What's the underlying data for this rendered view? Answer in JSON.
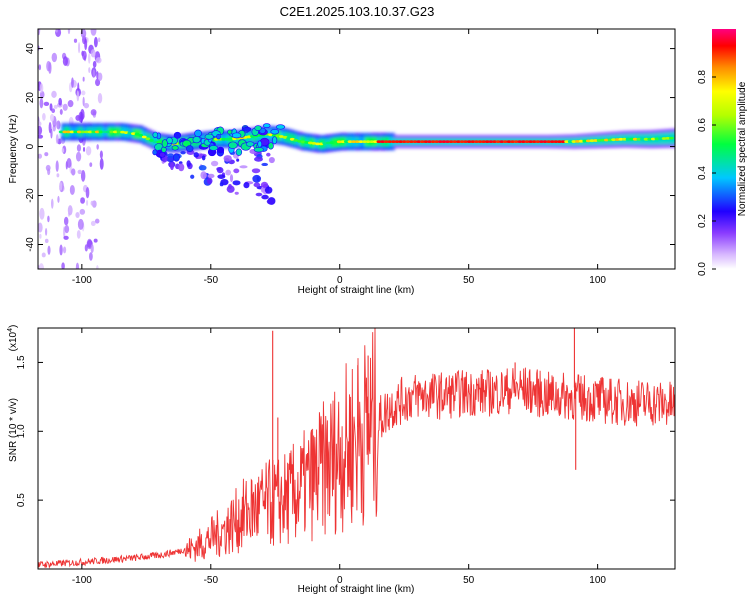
{
  "title": "C2E1.2025.103.10.37.G23",
  "chart_data": [
    {
      "type": "heatmap",
      "xlabel": "Height of straight line (km)",
      "ylabel": "Frequency (Hz)",
      "xlim": [
        -117,
        130
      ],
      "ylim": [
        -50,
        48
      ],
      "xticks": [
        -100,
        -50,
        0,
        50,
        100
      ],
      "yticks": [
        -40,
        -20,
        0,
        20,
        40
      ],
      "ridge": {
        "x": [
          -105,
          -95,
          -85,
          -78,
          -72,
          -65,
          -58,
          -50,
          -42,
          -35,
          -28,
          -22,
          -15,
          -8,
          0,
          10,
          20,
          40,
          60,
          80,
          90,
          100,
          110,
          120,
          130
        ],
        "freq": [
          6,
          6,
          6,
          5,
          2,
          1,
          2,
          3,
          3,
          4,
          5,
          4,
          2,
          1,
          2,
          2,
          2,
          2,
          2,
          2,
          2,
          2.5,
          3,
          3,
          3.5
        ]
      },
      "colorbar": {
        "label": "Normalized spectral amplitude",
        "range": [
          0,
          1
        ],
        "ticks": [
          "0.0",
          "0.2",
          "0.4",
          "0.6",
          "0.8"
        ],
        "tick_values": [
          0,
          0.2,
          0.4,
          0.6,
          0.8
        ]
      }
    },
    {
      "type": "line",
      "xlabel": "Height of straight line (km)",
      "ylabel": "SNR (10 * v/v)",
      "y_multiplier": "(x10",
      "y_exponent": "4",
      "y_exponent_close": ")",
      "xlim": [
        -117,
        130
      ],
      "ylim": [
        0,
        1.75
      ],
      "xticks": [
        -100,
        -50,
        0,
        50,
        100
      ],
      "yticks": [
        0.5,
        1.0,
        1.5
      ],
      "ytick_labels": [
        "0.5",
        "1.0",
        "1.5"
      ],
      "series": [
        {
          "color": "#ee3333",
          "envelope_x": [
            -117,
            -100,
            -80,
            -70,
            -62,
            -55,
            -45,
            -35,
            -28,
            -20,
            -15,
            -10,
            -5,
            0,
            5,
            10,
            15,
            20,
            25,
            30,
            40,
            50,
            60,
            70,
            80,
            90,
            100,
            110,
            120,
            130
          ],
          "envelope_y": [
            0.02,
            0.04,
            0.07,
            0.09,
            0.12,
            0.18,
            0.3,
            0.45,
            0.5,
            0.55,
            0.62,
            0.7,
            0.8,
            0.9,
            1.0,
            1.08,
            1.15,
            1.25,
            1.3,
            1.33,
            1.33,
            1.35,
            1.35,
            1.38,
            1.33,
            1.32,
            1.3,
            1.28,
            1.28,
            1.26
          ],
          "spikes": [
            {
              "x": -26,
              "y": 1.73
            },
            {
              "x": -24,
              "y": 1.1
            },
            {
              "x": 91,
              "y": 1.75
            },
            {
              "x": 91.5,
              "y": 0.72
            },
            {
              "x": 7,
              "y": 1.48
            },
            {
              "x": 11,
              "y": 1.55
            },
            {
              "x": 68,
              "y": 1.5
            }
          ]
        }
      ]
    }
  ]
}
